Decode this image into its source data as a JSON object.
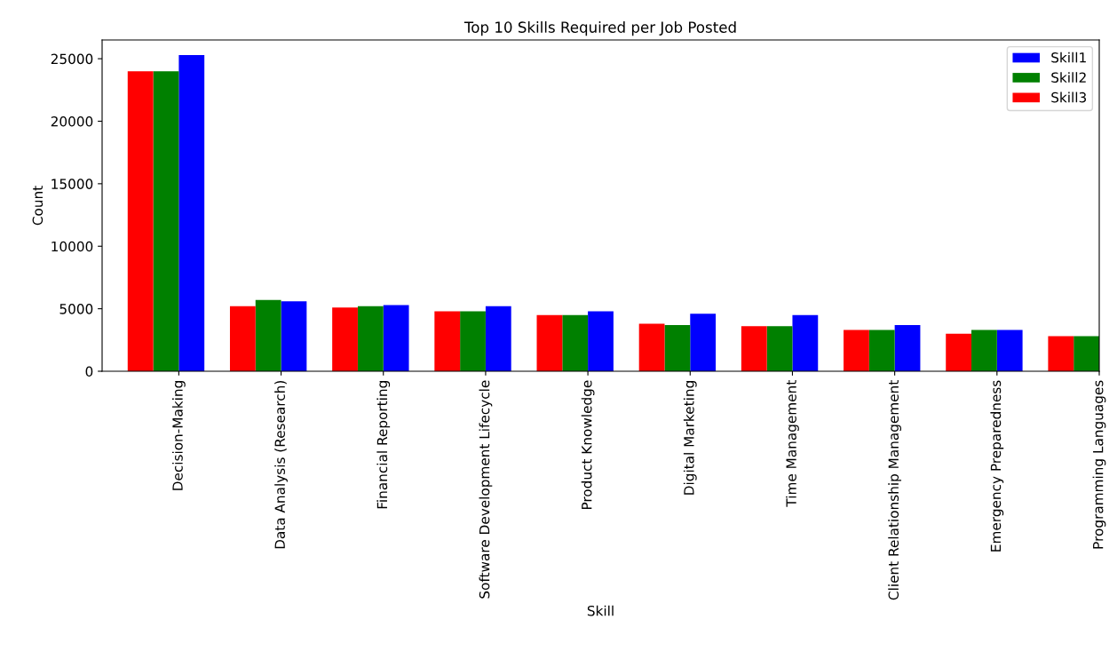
{
  "chart_data": {
    "type": "bar",
    "title": "Top 10 Skills Required per Job Posted",
    "xlabel": "Skill",
    "ylabel": "Count",
    "categories": [
      "Decision-Making",
      "Data Analysis (Research)",
      "Financial Reporting",
      "Software Development Lifecycle",
      "Product Knowledge",
      "Digital Marketing",
      "Time Management",
      "Client Relationship Management",
      "Emergency Preparedness",
      "Programming Languages"
    ],
    "series": [
      {
        "name": "Skill1",
        "color": "#0000ff",
        "values": [
          25300,
          5600,
          5300,
          5200,
          4800,
          4600,
          4500,
          3700,
          3300,
          null
        ]
      },
      {
        "name": "Skill2",
        "color": "#008000",
        "values": [
          24000,
          5700,
          5200,
          4800,
          4500,
          3700,
          3600,
          3300,
          3300,
          2800
        ]
      },
      {
        "name": "Skill3",
        "color": "#ff0000",
        "values": [
          24000,
          5200,
          5100,
          4800,
          4500,
          3800,
          3600,
          3300,
          3000,
          2800
        ]
      }
    ],
    "ylim": [
      0,
      26500
    ],
    "yticks": [
      0,
      5000,
      10000,
      15000,
      20000,
      25000
    ],
    "legend": "top right"
  }
}
